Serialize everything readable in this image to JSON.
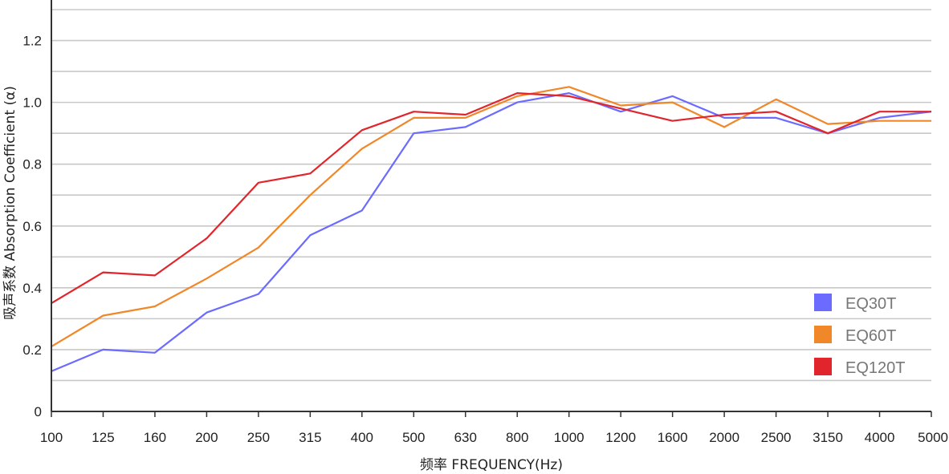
{
  "chart_data": {
    "type": "line",
    "xlabel": "频率 FREQUENCY(Hz)",
    "ylabel": "吸声系数 Absorption Coefficient (α)",
    "categories": [
      "100",
      "125",
      "160",
      "200",
      "250",
      "315",
      "400",
      "500",
      "630",
      "800",
      "1000",
      "1200",
      "1600",
      "2000",
      "2500",
      "3150",
      "4000",
      "5000"
    ],
    "ylim": [
      0,
      1.3
    ],
    "yticks": [
      "0",
      "0.2",
      "0.4",
      "0.6",
      "0.8",
      "1.0",
      "1.2"
    ],
    "ytick_values": [
      0,
      0.2,
      0.4,
      0.6,
      0.8,
      1.0,
      1.2
    ],
    "grid": true,
    "legend_position": "bottom-right",
    "series": [
      {
        "name": "EQ30T",
        "color": "#6b6bff",
        "values": [
          0.13,
          0.2,
          0.19,
          0.32,
          0.38,
          0.57,
          0.65,
          0.9,
          0.92,
          1.0,
          1.03,
          0.97,
          1.02,
          0.95,
          0.95,
          0.9,
          0.95,
          0.97
        ]
      },
      {
        "name": "EQ60T",
        "color": "#f0882a",
        "values": [
          0.21,
          0.31,
          0.34,
          0.43,
          0.53,
          0.7,
          0.85,
          0.95,
          0.95,
          1.02,
          1.05,
          0.99,
          1.0,
          0.92,
          1.01,
          0.93,
          0.94,
          0.94
        ]
      },
      {
        "name": "EQ120T",
        "color": "#e0252c",
        "values": [
          0.35,
          0.45,
          0.44,
          0.56,
          0.74,
          0.77,
          0.91,
          0.97,
          0.96,
          1.03,
          1.02,
          0.98,
          0.94,
          0.96,
          0.97,
          0.9,
          0.97,
          0.97
        ]
      }
    ]
  }
}
